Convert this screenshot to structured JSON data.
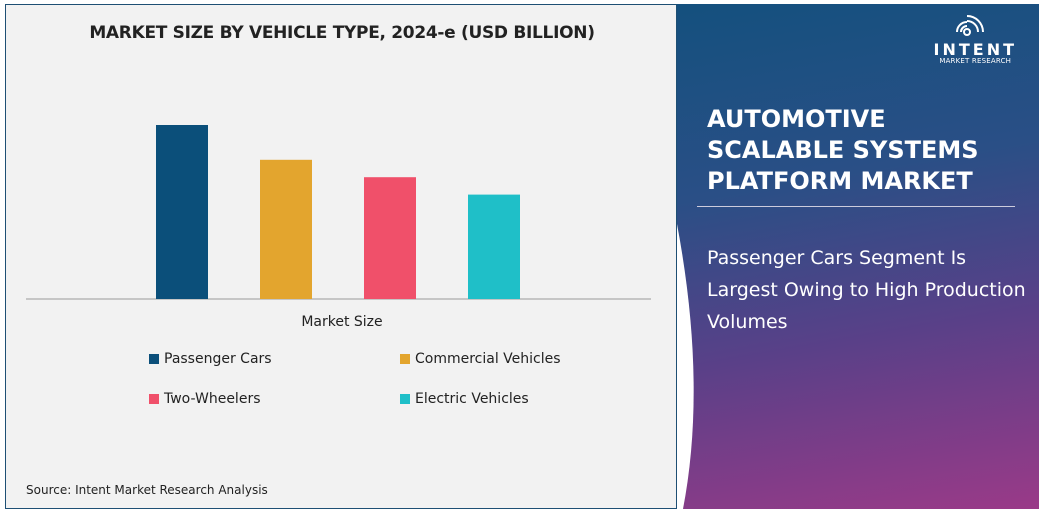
{
  "chart_data": {
    "type": "bar",
    "title": "MARKET SIZE BY VEHICLE TYPE, 2024-e (USD BILLION)",
    "xlabel": "Market Size",
    "ylabel": "",
    "categories": [
      "Passenger Cars",
      "Commercial Vehicles",
      "Two-Wheelers",
      "Electric Vehicles"
    ],
    "values": [
      1.0,
      0.8,
      0.7,
      0.6
    ],
    "value_note": "relative heights; no axis values printed",
    "colors": [
      "#0b4f7a",
      "#e3a52e",
      "#f0506a",
      "#1fbfc8"
    ],
    "grid": false,
    "legend_placement": "bottom"
  },
  "source": "Source: Intent Market Research Analysis",
  "panel": {
    "logo_name": "INTENT",
    "logo_sub": "MARKET RESEARCH",
    "title_lines": [
      "AUTOMOTIVE",
      "SCALABLE SYSTEMS",
      "PLATFORM MARKET"
    ],
    "subtitle": "Passenger Cars Segment Is Largest Owing to High Production Volumes"
  }
}
